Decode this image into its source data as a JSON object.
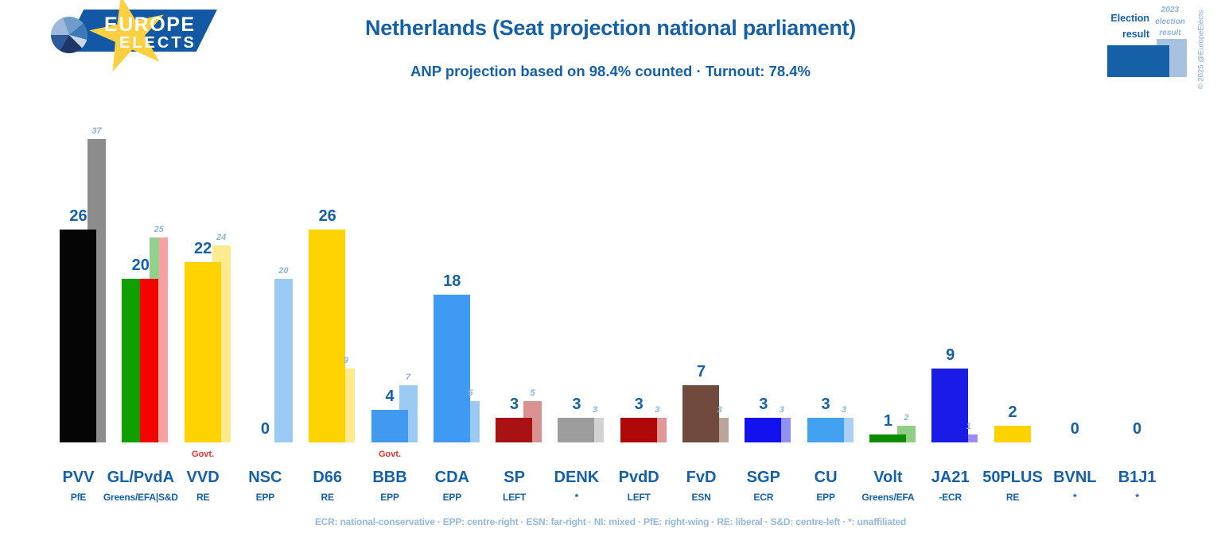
{
  "brand": {
    "line1": "EUROPE",
    "line2": "ELECTS"
  },
  "header": {
    "title": "Netherlands (Seat projection national parliament)",
    "subtitle": "ANP projection based on 98.4% counted · Turnout: 78.4%"
  },
  "legend": {
    "current_label": "Election result",
    "previous_line1": "2023",
    "previous_line2": "election",
    "previous_line3": "result",
    "current_color": "#1660A8",
    "previous_color": "#A6C2E0",
    "copyright": "© 2025 @EuropeElects"
  },
  "footer": {
    "text": "ECR: national-conservative · EPP: centre-right · ESN: far-right · NI: mixed · PfE: right-wing · RE: liberal · S&D: centre-left · *: unaffiliated"
  },
  "chart_data": {
    "type": "bar",
    "title": "Netherlands (Seat projection national parliament)",
    "subtitle": "ANP projection based on 98.4% counted · Turnout: 78.4%",
    "unit": "seats",
    "ylim": [
      0,
      40
    ],
    "grid": false,
    "legend_position": "top-right",
    "series": [
      {
        "name": "Election result (ANP projection)"
      },
      {
        "name": "2023 election result"
      }
    ],
    "govt_label": "Govt.",
    "parties": [
      {
        "name": "PVV",
        "group": "PfE",
        "value": 26,
        "prev": 37,
        "colors": [
          "#050505"
        ],
        "prev_colors": [
          "#8C8C8C"
        ],
        "govt": false
      },
      {
        "name": "GL/PvdA",
        "group": "Greens/EFA|S&D",
        "value": 20,
        "prev": 25,
        "colors": [
          "#0FA000",
          "#F50202"
        ],
        "prev_colors": [
          "#94CF8E",
          "#F7A2A2"
        ],
        "govt": false
      },
      {
        "name": "VVD",
        "group": "RE",
        "value": 22,
        "prev": 24,
        "colors": [
          "#FFD201"
        ],
        "prev_colors": [
          "#FFEA8F"
        ],
        "govt": true
      },
      {
        "name": "NSC",
        "group": "EPP",
        "value": 0,
        "prev": 20,
        "colors": [],
        "prev_colors": [
          "#9BCBF4"
        ],
        "govt": false
      },
      {
        "name": "D66",
        "group": "RE",
        "value": 26,
        "prev": 9,
        "colors": [
          "#FFD201"
        ],
        "prev_colors": [
          "#FFEA8F"
        ],
        "govt": false
      },
      {
        "name": "BBB",
        "group": "EPP",
        "value": 4,
        "prev": 7,
        "colors": [
          "#4299F0"
        ],
        "prev_colors": [
          "#9BCBF4"
        ],
        "govt": true
      },
      {
        "name": "CDA",
        "group": "EPP",
        "value": 18,
        "prev": 5,
        "colors": [
          "#3E9AF3"
        ],
        "prev_colors": [
          "#9BCBF4"
        ],
        "govt": false
      },
      {
        "name": "SP",
        "group": "LEFT",
        "value": 3,
        "prev": 5,
        "colors": [
          "#A81212"
        ],
        "prev_colors": [
          "#D89292"
        ],
        "govt": false
      },
      {
        "name": "DENK",
        "group": "*",
        "value": 3,
        "prev": 3,
        "colors": [
          "#9D9D9D"
        ],
        "prev_colors": [
          "#D2D2D2"
        ],
        "govt": false
      },
      {
        "name": "PvdD",
        "group": "LEFT",
        "value": 3,
        "prev": 3,
        "colors": [
          "#AE0808"
        ],
        "prev_colors": [
          "#E19797"
        ],
        "govt": false
      },
      {
        "name": "FvD",
        "group": "ESN",
        "value": 7,
        "prev": 3,
        "colors": [
          "#6F4A3D"
        ],
        "prev_colors": [
          "#BBA49A"
        ],
        "govt": false
      },
      {
        "name": "SGP",
        "group": "ECR",
        "value": 3,
        "prev": 3,
        "colors": [
          "#1212EE"
        ],
        "prev_colors": [
          "#9191F0"
        ],
        "govt": false
      },
      {
        "name": "CU",
        "group": "EPP",
        "value": 3,
        "prev": 3,
        "colors": [
          "#42A1F1"
        ],
        "prev_colors": [
          "#A9D1F6"
        ],
        "govt": false
      },
      {
        "name": "Volt",
        "group": "Greens/EFA",
        "value": 1,
        "prev": 2,
        "colors": [
          "#0E8C00"
        ],
        "prev_colors": [
          "#90CE85"
        ],
        "govt": false
      },
      {
        "name": "JA21",
        "group": "-ECR",
        "value": 9,
        "prev": 1,
        "colors": [
          "#1B1BE8"
        ],
        "prev_colors": [
          "#9D8DEE"
        ],
        "govt": false
      },
      {
        "name": "50PLUS",
        "group": "RE",
        "value": 2,
        "prev": 0,
        "colors": [
          "#FFD201"
        ],
        "prev_colors": [],
        "govt": false
      },
      {
        "name": "BVNL",
        "group": "*",
        "value": 0,
        "prev": 0,
        "colors": [],
        "prev_colors": [],
        "govt": false
      },
      {
        "name": "B1J1",
        "group": "*",
        "value": 0,
        "prev": 0,
        "colors": [],
        "prev_colors": [],
        "govt": false
      }
    ]
  }
}
